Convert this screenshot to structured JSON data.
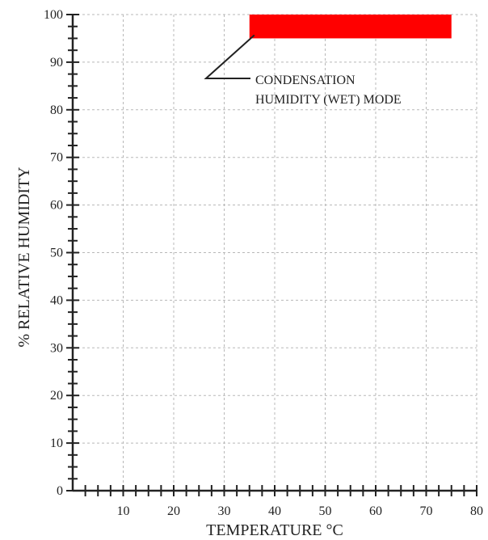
{
  "chart_data": {
    "type": "area",
    "title": "",
    "xlabel": "TEMPERATURE °C",
    "ylabel": "% RELATIVE HUMIDITY",
    "xlim": [
      0,
      80
    ],
    "ylim": [
      0,
      100
    ],
    "x_ticks": [
      10,
      20,
      30,
      40,
      50,
      60,
      70,
      80
    ],
    "y_ticks": [
      0,
      10,
      20,
      30,
      40,
      50,
      60,
      70,
      80,
      90,
      100
    ],
    "grid": true,
    "regions": [
      {
        "x_range": [
          35,
          75
        ],
        "y_range": [
          95,
          100
        ],
        "color": "#ff0000"
      }
    ],
    "annotation": {
      "lines": [
        "CONDENSATION",
        "HUMIDITY (WET) MODE"
      ]
    }
  }
}
